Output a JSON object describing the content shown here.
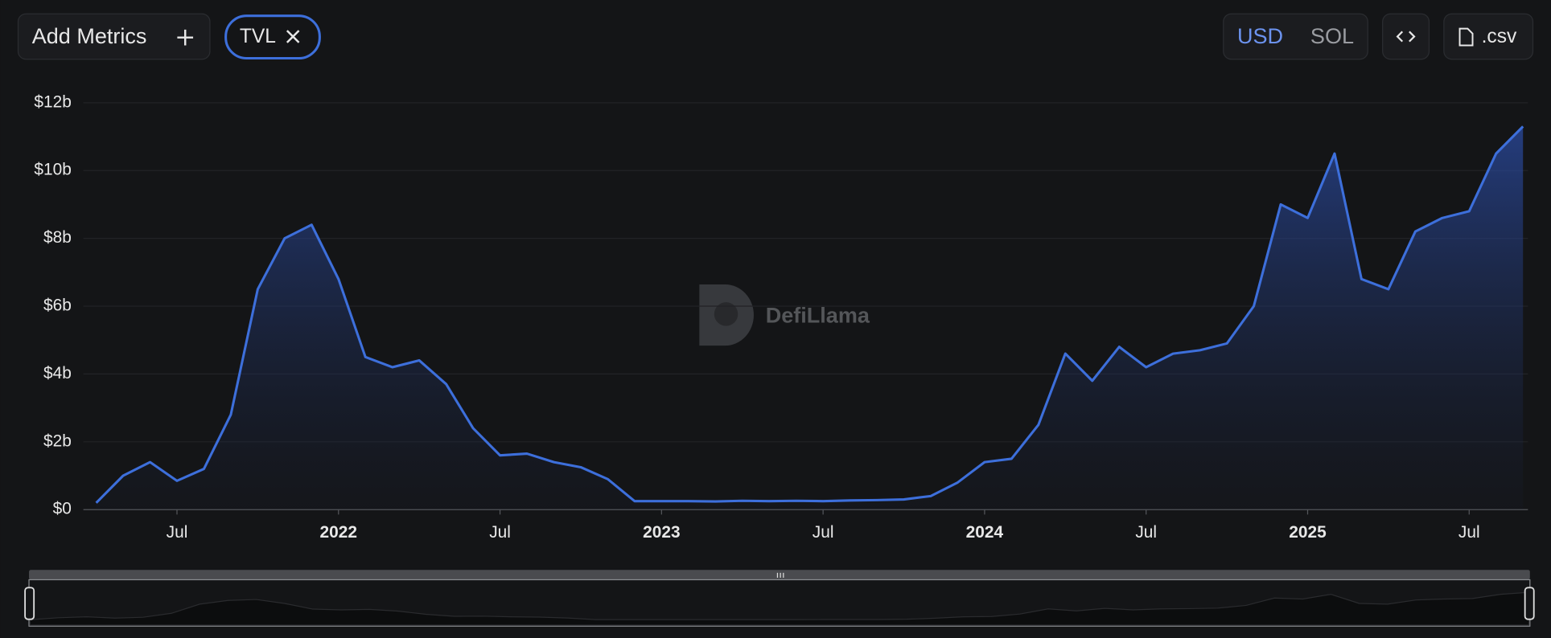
{
  "toolbar": {
    "add_metrics": "Add Metrics",
    "metric_tag": "TVL",
    "currencies": [
      "USD",
      "SOL"
    ],
    "csv": ".csv"
  },
  "watermark": "DefiLlama",
  "chart_data": {
    "type": "area",
    "x": [
      "2021-04",
      "2021-05",
      "2021-06",
      "2021-07",
      "2021-08",
      "2021-09",
      "2021-10",
      "2021-11",
      "2021-12",
      "2022-01",
      "2022-02",
      "2022-03",
      "2022-04",
      "2022-05",
      "2022-06",
      "2022-07",
      "2022-08",
      "2022-09",
      "2022-10",
      "2022-11",
      "2022-12",
      "2023-01",
      "2023-02",
      "2023-03",
      "2023-04",
      "2023-05",
      "2023-06",
      "2023-07",
      "2023-08",
      "2023-09",
      "2023-10",
      "2023-11",
      "2023-12",
      "2024-01",
      "2024-02",
      "2024-03",
      "2024-04",
      "2024-05",
      "2024-06",
      "2024-07",
      "2024-08",
      "2024-09",
      "2024-10",
      "2024-11",
      "2024-12",
      "2025-01",
      "2025-02",
      "2025-03",
      "2025-04",
      "2025-05",
      "2025-06",
      "2025-07",
      "2025-08",
      "2025-09"
    ],
    "series": [
      {
        "name": "TVL",
        "color": "#3d6fdb",
        "values": [
          0.2,
          1.0,
          1.4,
          0.85,
          1.2,
          2.8,
          6.5,
          8.0,
          8.4,
          6.8,
          4.5,
          4.2,
          4.4,
          3.7,
          2.4,
          1.6,
          1.65,
          1.4,
          1.25,
          0.9,
          0.25,
          0.25,
          0.25,
          0.24,
          0.26,
          0.25,
          0.26,
          0.25,
          0.27,
          0.28,
          0.3,
          0.4,
          0.8,
          1.4,
          1.5,
          2.5,
          4.6,
          3.8,
          4.8,
          4.2,
          4.6,
          4.7,
          4.9,
          6.0,
          9.0,
          8.6,
          10.5,
          6.8,
          6.5,
          8.2,
          8.6,
          8.8,
          10.5,
          11.3
        ]
      }
    ],
    "ylim": [
      0,
      12
    ],
    "yticks": [
      {
        "value": 0,
        "label": "$0"
      },
      {
        "value": 2,
        "label": "$2b"
      },
      {
        "value": 4,
        "label": "$4b"
      },
      {
        "value": 6,
        "label": "$6b"
      },
      {
        "value": 8,
        "label": "$8b"
      },
      {
        "value": 10,
        "label": "$10b"
      },
      {
        "value": 12,
        "label": "$12b"
      }
    ],
    "xticks": [
      {
        "value": "2021-07",
        "label": "Jul"
      },
      {
        "value": "2022-01",
        "label": "2022"
      },
      {
        "value": "2022-07",
        "label": "Jul"
      },
      {
        "value": "2023-01",
        "label": "2023"
      },
      {
        "value": "2023-07",
        "label": "Jul"
      },
      {
        "value": "2024-01",
        "label": "2024"
      },
      {
        "value": "2024-07",
        "label": "Jul"
      },
      {
        "value": "2025-01",
        "label": "2025"
      },
      {
        "value": "2025-07",
        "label": "Jul"
      }
    ],
    "grid": true
  }
}
